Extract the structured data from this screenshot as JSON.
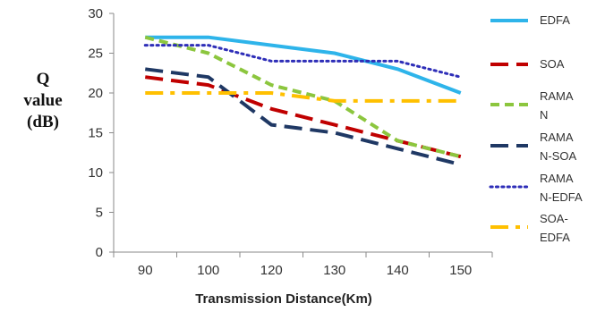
{
  "chart_data": {
    "type": "line",
    "title": "",
    "xlabel": "Transmission Distance(Km)",
    "ylabel_lines": [
      "Q",
      "value",
      "(dB)"
    ],
    "categories": [
      "90",
      "100",
      "120",
      "130",
      "140",
      "150"
    ],
    "ylim": [
      0,
      30
    ],
    "yticks": [
      0,
      5,
      10,
      15,
      20,
      25,
      30
    ],
    "grid": false,
    "legend_position": "right",
    "series": [
      {
        "name_lines": [
          "EDFA"
        ],
        "color": "#2EB4EA",
        "dash": "solid",
        "values": [
          27,
          27,
          26,
          25,
          23,
          20
        ]
      },
      {
        "name_lines": [
          "SOA"
        ],
        "color": "#C00000",
        "dash": "longdash",
        "values": [
          22,
          21,
          18,
          16,
          14,
          12
        ]
      },
      {
        "name_lines": [
          "RAMA",
          "N"
        ],
        "color": "#8CC63E",
        "dash": "dash",
        "values": [
          27,
          25,
          21,
          19,
          14,
          12
        ]
      },
      {
        "name_lines": [
          "RAMA",
          "N-SOA"
        ],
        "color": "#1F3864",
        "dash": "longdash",
        "values": [
          23,
          22,
          16,
          15,
          13,
          11
        ]
      },
      {
        "name_lines": [
          "RAMA",
          "N-EDFA"
        ],
        "color": "#2E2EB8",
        "dash": "dot",
        "values": [
          26,
          26,
          24,
          24,
          24,
          22
        ]
      },
      {
        "name_lines": [
          "SOA-",
          "EDFA"
        ],
        "color": "#FFC000",
        "dash": "dashdot",
        "values": [
          20,
          20,
          20,
          19,
          19,
          19
        ]
      }
    ]
  }
}
